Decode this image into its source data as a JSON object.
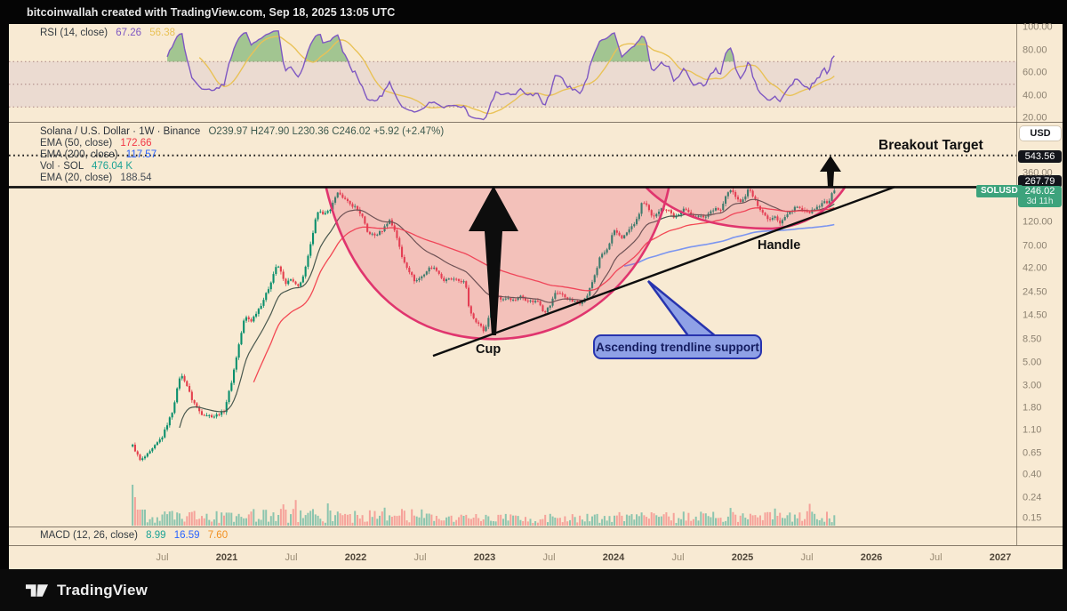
{
  "header": {
    "title": "bitcoinwallah created with TradingView.com, Sep 18, 2025 13:05 UTC"
  },
  "footer": {
    "brand": "TradingView"
  },
  "legends": {
    "rsi": {
      "name": "RSI (14, close)",
      "rsi_value": "67.26",
      "ma_value": "56.38"
    },
    "symbol_row": {
      "title": "Solana / U.S. Dollar · 1W · Binance",
      "ohlc": "O239.97 H247.90 L230.36 C246.02 +5.92 (+2.47%)"
    },
    "ema50": {
      "name": "EMA (50, close)",
      "value": "172.66"
    },
    "ema200": {
      "name": "EMA (200, close)",
      "value": "117.57"
    },
    "vol": {
      "name": "Vol · SOL",
      "value": "476.04 K"
    },
    "ema20": {
      "name": "EMA (20, close)",
      "value": "188.54"
    },
    "macd": {
      "name": "MACD (12, 26, close)",
      "v1": "8.99",
      "v2": "16.59",
      "v3": "7.60"
    }
  },
  "annotations": {
    "breakout_target": "Breakout Target",
    "cup": "Cup",
    "handle": "Handle",
    "callout": "Ascending trendline support"
  },
  "axis": {
    "usd_button": "USD",
    "rsi_ticks": [
      [
        "100.00",
        100
      ],
      [
        "80.00",
        80
      ],
      [
        "60.00",
        60
      ],
      [
        "40.00",
        40
      ],
      [
        "20.00",
        20
      ]
    ],
    "price_ticks": [
      [
        "360.00",
        360
      ],
      [
        "120.00",
        120
      ],
      [
        "70.00",
        70
      ],
      [
        "42.00",
        42
      ],
      [
        "24.50",
        24.5
      ],
      [
        "14.50",
        14.5
      ],
      [
        "8.50",
        8.5
      ],
      [
        "5.00",
        5
      ],
      [
        "3.00",
        3
      ],
      [
        "1.80",
        1.8
      ],
      [
        "1.10",
        1.1
      ],
      [
        "0.65",
        0.65
      ],
      [
        "0.40",
        0.4
      ],
      [
        "0.24",
        0.24
      ],
      [
        "0.15",
        0.15
      ]
    ],
    "time_ticks": [
      [
        "Jul",
        2020.5
      ],
      [
        "2021",
        2021
      ],
      [
        "Jul",
        2021.5
      ],
      [
        "2022",
        2022
      ],
      [
        "Jul",
        2022.5
      ],
      [
        "2023",
        2023
      ],
      [
        "Jul",
        2023.5
      ],
      [
        "2024",
        2024
      ],
      [
        "Jul",
        2024.5
      ],
      [
        "2025",
        2025
      ],
      [
        "Jul",
        2025.5
      ],
      [
        "2026",
        2026
      ],
      [
        "Jul",
        2026.5
      ],
      [
        "2027",
        2027
      ]
    ],
    "badges": {
      "breakout_level": "543.56",
      "resistance_level": "267.79",
      "last_price": "246.02",
      "countdown": "3d 11h",
      "symbol_tag": "SOLUSD"
    }
  },
  "colors": {
    "candle_up": "#0a8f6d",
    "candle_down": "#e4404d",
    "ema20": "#49584e",
    "ema50": "#f23645",
    "ema200": "#7b95f0",
    "rsi_line": "#7e57c2",
    "rsi_ma": "#e9c257",
    "pattern_stroke": "#e0356e",
    "pattern_fill": "rgba(232,62,109,0.24)",
    "callout_fill": "#8fa1e6",
    "callout_border": "#2733ae",
    "badge_green": "#3da37c",
    "volume_up": "rgba(8,153,129,0.45)",
    "volume_down": "rgba(242,54,69,0.4)"
  },
  "chart_data": {
    "type": "candlestick",
    "symbol": "SOLUSD",
    "title": "Solana / U.S. Dollar · 1W · Binance",
    "scale": "log",
    "time_range": [
      2020.27,
      2025.72
    ],
    "last_close": 246.02,
    "indicator_values": {
      "rsi": 67.26,
      "rsi_ma": 56.38,
      "ema50": 172.66,
      "ema200": 117.57,
      "ema20": 188.54,
      "volume": "476.04 K",
      "macd": [
        8.99,
        16.59,
        7.6
      ]
    },
    "levels": {
      "breakout_target": 543.56,
      "resistance": 267.79
    },
    "price_keyframes": [
      [
        2020.27,
        0.78
      ],
      [
        2020.33,
        0.55
      ],
      [
        2020.4,
        0.66
      ],
      [
        2020.5,
        0.95
      ],
      [
        2020.58,
        1.7
      ],
      [
        2020.64,
        3.9
      ],
      [
        2020.68,
        3.3
      ],
      [
        2020.73,
        2.2
      ],
      [
        2020.8,
        1.6
      ],
      [
        2020.9,
        1.5
      ],
      [
        2020.98,
        1.7
      ],
      [
        2021.04,
        3.4
      ],
      [
        2021.09,
        7.2
      ],
      [
        2021.14,
        14.3
      ],
      [
        2021.19,
        13.0
      ],
      [
        2021.27,
        19.0
      ],
      [
        2021.33,
        28.0
      ],
      [
        2021.38,
        44.0
      ],
      [
        2021.41,
        43.0
      ],
      [
        2021.45,
        30.0
      ],
      [
        2021.5,
        33.0
      ],
      [
        2021.55,
        27.5
      ],
      [
        2021.6,
        37.0
      ],
      [
        2021.65,
        72.0
      ],
      [
        2021.69,
        135.0
      ],
      [
        2021.72,
        160.0
      ],
      [
        2021.75,
        140.0
      ],
      [
        2021.8,
        158.0
      ],
      [
        2021.84,
        205.0
      ],
      [
        2021.87,
        240.0
      ],
      [
        2021.91,
        205.0
      ],
      [
        2021.96,
        178.0
      ],
      [
        2022.0,
        170.0
      ],
      [
        2022.05,
        138.0
      ],
      [
        2022.09,
        96.0
      ],
      [
        2022.15,
        89.0
      ],
      [
        2022.21,
        101.0
      ],
      [
        2022.26,
        128.0
      ],
      [
        2022.31,
        96.0
      ],
      [
        2022.36,
        54.0
      ],
      [
        2022.42,
        39.0
      ],
      [
        2022.46,
        31.5
      ],
      [
        2022.52,
        36.0
      ],
      [
        2022.58,
        44.0
      ],
      [
        2022.63,
        41.0
      ],
      [
        2022.68,
        32.0
      ],
      [
        2022.74,
        33.5
      ],
      [
        2022.8,
        32.0
      ],
      [
        2022.85,
        31.0
      ],
      [
        2022.88,
        17.0
      ],
      [
        2022.92,
        13.5
      ],
      [
        2022.97,
        11.5
      ],
      [
        2023.0,
        10.0
      ],
      [
        2023.04,
        16.0
      ],
      [
        2023.09,
        23.5
      ],
      [
        2023.13,
        21.0
      ],
      [
        2023.18,
        22.0
      ],
      [
        2023.23,
        20.5
      ],
      [
        2023.27,
        23.0
      ],
      [
        2023.32,
        21.0
      ],
      [
        2023.37,
        20.0
      ],
      [
        2023.42,
        20.5
      ],
      [
        2023.46,
        15.5
      ],
      [
        2023.51,
        18.5
      ],
      [
        2023.55,
        25.0
      ],
      [
        2023.59,
        24.0
      ],
      [
        2023.64,
        21.5
      ],
      [
        2023.69,
        20.0
      ],
      [
        2023.74,
        19.5
      ],
      [
        2023.79,
        22.0
      ],
      [
        2023.83,
        30.0
      ],
      [
        2023.87,
        42.0
      ],
      [
        2023.9,
        58.0
      ],
      [
        2023.94,
        61.0
      ],
      [
        2023.97,
        74.0
      ],
      [
        2024.0,
        99.0
      ],
      [
        2024.03,
        94.0
      ],
      [
        2024.07,
        84.0
      ],
      [
        2024.11,
        98.0
      ],
      [
        2024.15,
        112.0
      ],
      [
        2024.19,
        132.0
      ],
      [
        2024.22,
        190.0
      ],
      [
        2024.26,
        172.0
      ],
      [
        2024.3,
        133.0
      ],
      [
        2024.34,
        152.0
      ],
      [
        2024.38,
        165.0
      ],
      [
        2024.43,
        158.0
      ],
      [
        2024.47,
        134.0
      ],
      [
        2024.51,
        141.0
      ],
      [
        2024.55,
        172.0
      ],
      [
        2024.58,
        152.0
      ],
      [
        2024.61,
        134.0
      ],
      [
        2024.66,
        142.0
      ],
      [
        2024.7,
        131.0
      ],
      [
        2024.75,
        153.0
      ],
      [
        2024.79,
        167.0
      ],
      [
        2024.83,
        156.0
      ],
      [
        2024.87,
        214.0
      ],
      [
        2024.9,
        250.0
      ],
      [
        2024.93,
        235.0
      ],
      [
        2024.97,
        192.0
      ],
      [
        2025.0,
        194.0
      ],
      [
        2025.05,
        258.0
      ],
      [
        2025.09,
        204.0
      ],
      [
        2025.13,
        168.0
      ],
      [
        2025.17,
        142.0
      ],
      [
        2025.21,
        127.0
      ],
      [
        2025.25,
        141.0
      ],
      [
        2025.29,
        118.0
      ],
      [
        2025.33,
        135.0
      ],
      [
        2025.37,
        152.0
      ],
      [
        2025.41,
        172.0
      ],
      [
        2025.45,
        163.0
      ],
      [
        2025.49,
        148.0
      ],
      [
        2025.53,
        153.0
      ],
      [
        2025.57,
        163.0
      ],
      [
        2025.61,
        178.0
      ],
      [
        2025.645,
        196.0
      ],
      [
        2025.66,
        186.0
      ],
      [
        2025.68,
        205.0
      ],
      [
        2025.7,
        236.0
      ],
      [
        2025.72,
        246.02
      ]
    ],
    "pattern": {
      "name": "Cup and Handle",
      "cup": {
        "left_rim_t": 2021.77,
        "right_rim_t": 2024.43,
        "rim_price": 266,
        "bottom_t": 2023.08,
        "bottom_price": 8.6
      },
      "handle": {
        "start_t": 2024.25,
        "low_t": 2025.23,
        "low_price": 104,
        "end_t": 2025.8,
        "end_price": 264
      },
      "trendline": {
        "from_t": 2022.6,
        "from_price": 5.9,
        "to_t": 2026.18,
        "to_price": 266
      }
    }
  }
}
